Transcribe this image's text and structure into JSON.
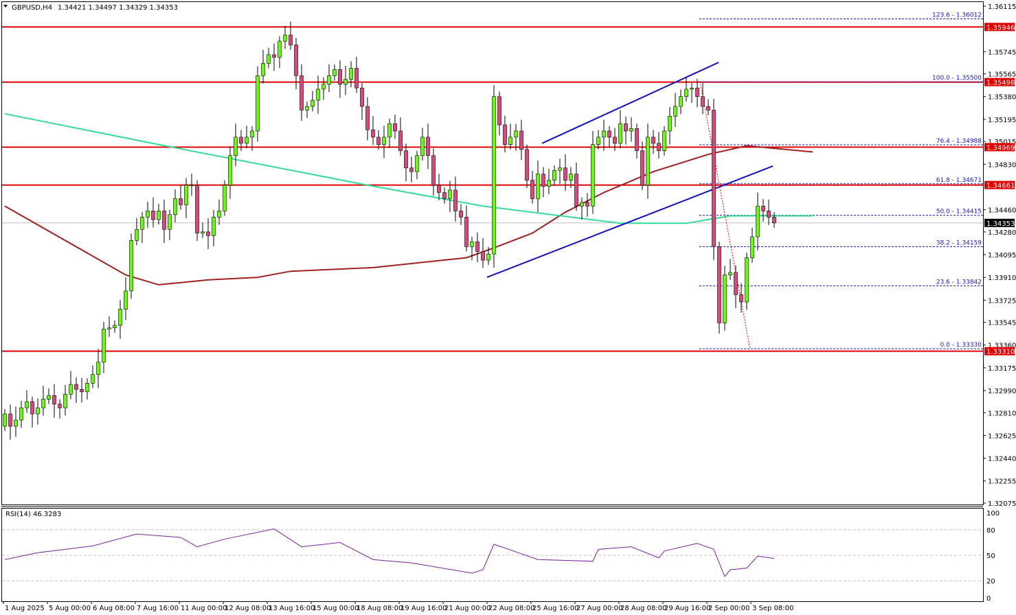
{
  "header": {
    "symbol": "GBPUSD,H4",
    "ohlc": "1.34421 1.34497 1.34329 1.34353",
    "menu_icon": "triangle-down-icon"
  },
  "chart_data": {
    "type": "candlestick",
    "colors": {
      "bull": "#66ff00",
      "bear": "#e0457b",
      "level": "#e00000",
      "fib": "#1a1acc",
      "channel": "#1010c0",
      "ma_fast": "#33dd99",
      "ma_slow": "#a02020",
      "rsi": "#8020a0"
    },
    "ylim": [
      1.32075,
      1.36115
    ],
    "price_ticks": [
      "1.36115",
      "1.35745",
      "1.35565",
      "1.35380",
      "1.35195",
      "1.35015",
      "1.34830",
      "1.34460",
      "1.34280",
      "1.34095",
      "1.33910",
      "1.33725",
      "1.33545",
      "1.33360",
      "1.33175",
      "1.32990",
      "1.32810",
      "1.32625",
      "1.32440",
      "1.32255",
      "1.32075"
    ],
    "date_labels": [
      "1 Aug 2025",
      "5 Aug 00:00",
      "6 Aug 08:00",
      "7 Aug 16:00",
      "11 Aug 00:00",
      "12 Aug 08:00",
      "13 Aug 16:00",
      "15 Aug 00:00",
      "18 Aug 08:00",
      "19 Aug 16:00",
      "21 Aug 00:00",
      "22 Aug 08:00",
      "25 Aug 16:00",
      "27 Aug 00:00",
      "28 Aug 08:00",
      "29 Aug 16:00",
      "2 Sep 00:00",
      "3 Sep 08:00"
    ],
    "bars_per_date_label": 8,
    "first_open": 1.327,
    "closes": [
      1.328,
      1.327,
      1.3275,
      1.3285,
      1.329,
      1.328,
      1.3285,
      1.3292,
      1.3295,
      1.3288,
      1.3285,
      1.3296,
      1.3304,
      1.33,
      1.3298,
      1.3305,
      1.3312,
      1.3322,
      1.3349,
      1.335,
      1.3352,
      1.3365,
      1.338,
      1.3421,
      1.343,
      1.344,
      1.3445,
      1.3438,
      1.3445,
      1.343,
      1.3442,
      1.3455,
      1.345,
      1.3466,
      1.3466,
      1.3427,
      1.3428,
      1.3425,
      1.344,
      1.3445,
      1.3466,
      1.349,
      1.3505,
      1.35,
      1.3505,
      1.351,
      1.3555,
      1.3565,
      1.3572,
      1.357,
      1.3583,
      1.3588,
      1.358,
      1.3555,
      1.3527,
      1.353,
      1.3535,
      1.3544,
      1.3548,
      1.3555,
      1.356,
      1.3548,
      1.3552,
      1.3561,
      1.3545,
      1.353,
      1.3511,
      1.3505,
      1.3499,
      1.3505,
      1.3516,
      1.351,
      1.3494,
      1.348,
      1.3477,
      1.349,
      1.3505,
      1.349,
      1.3466,
      1.346,
      1.3455,
      1.3462,
      1.3445,
      1.344,
      1.3416,
      1.342,
      1.3412,
      1.3405,
      1.341,
      1.3538,
      1.3515,
      1.3499,
      1.3505,
      1.351,
      1.3495,
      1.347,
      1.3455,
      1.3475,
      1.3465,
      1.347,
      1.3478,
      1.348,
      1.347,
      1.3475,
      1.3449,
      1.3452,
      1.3449,
      1.3499,
      1.3505,
      1.351,
      1.3505,
      1.35,
      1.3516,
      1.351,
      1.3512,
      1.3494,
      1.3466,
      1.3505,
      1.35,
      1.3494,
      1.351,
      1.3522,
      1.353,
      1.3538,
      1.3544,
      1.3545,
      1.3538,
      1.353,
      1.3527,
      1.3416,
      1.3354,
      1.3393,
      1.3395,
      1.3377,
      1.3371,
      1.3407,
      1.3424,
      1.3449,
      1.3445,
      1.344,
      1.34353
    ],
    "ma_fast": [
      [
        0,
        1.3524
      ],
      [
        28,
        1.3499
      ],
      [
        66,
        1.3466
      ],
      [
        87,
        1.3449
      ],
      [
        112,
        1.3435
      ],
      [
        124,
        1.3435
      ],
      [
        132,
        1.3441
      ],
      [
        147,
        1.3441
      ]
    ],
    "ma_slow": [
      [
        0,
        1.3449
      ],
      [
        22,
        1.3393
      ],
      [
        28,
        1.3385
      ],
      [
        37,
        1.3389
      ],
      [
        46,
        1.3391
      ],
      [
        52,
        1.3396
      ],
      [
        67,
        1.3399
      ],
      [
        84,
        1.3407
      ],
      [
        89,
        1.3415
      ],
      [
        96,
        1.3427
      ],
      [
        102,
        1.3444
      ],
      [
        109,
        1.346
      ],
      [
        118,
        1.3477
      ],
      [
        128,
        1.3491
      ],
      [
        135,
        1.3498
      ],
      [
        147,
        1.3493
      ]
    ],
    "channel_lines": [
      {
        "from": [
          87.75,
          1.33911
        ],
        "to": [
          139.75,
          1.34815
        ]
      },
      {
        "from": [
          97.75,
          1.35
        ],
        "to": [
          129.9,
          1.35658
        ]
      }
    ],
    "fib_retracement_line": {
      "from": [
        126.5,
        1.355
      ],
      "to": [
        135.6,
        1.3333
      ]
    },
    "levels": [
      "1.35946",
      "1.35498",
      "1.34969",
      "1.34661",
      "1.33310"
    ],
    "fib_levels": [
      {
        "label": "123.6 - 1.36012",
        "price": 1.36012
      },
      {
        "label": "100.0 - 1.35500",
        "price": 1.355
      },
      {
        "label": "76.4 - 1.34988",
        "price": 1.34988
      },
      {
        "label": "61.8 - 1.34671",
        "price": 1.34671
      },
      {
        "label": "50.0 - 1.34415",
        "price": 1.34415
      },
      {
        "label": "38.2 - 1.34159",
        "price": 1.34159
      },
      {
        "label": "23.6 - 1.33842",
        "price": 1.33842
      },
      {
        "label": "0.0 - 1.33330",
        "price": 1.3333
      }
    ],
    "current_price": "1.34353",
    "rsi": {
      "title": "RSI(14) 46.3283",
      "ylim": [
        0,
        100
      ],
      "ticks": [
        "100",
        "80",
        "50",
        "20",
        "0"
      ],
      "grid": [
        80,
        50,
        20
      ],
      "values": [
        [
          0,
          45
        ],
        [
          6,
          53
        ],
        [
          16,
          61
        ],
        [
          24,
          75
        ],
        [
          32,
          71
        ],
        [
          35,
          60
        ],
        [
          40,
          69
        ],
        [
          49,
          81
        ],
        [
          54,
          60
        ],
        [
          61,
          65
        ],
        [
          67,
          45
        ],
        [
          74,
          41
        ],
        [
          85,
          29
        ],
        [
          87,
          33
        ],
        [
          89,
          63
        ],
        [
          97,
          45
        ],
        [
          107,
          43
        ],
        [
          108,
          57
        ],
        [
          114,
          60
        ],
        [
          119,
          47
        ],
        [
          120,
          55
        ],
        [
          126,
          64
        ],
        [
          129,
          57
        ],
        [
          131,
          25
        ],
        [
          132,
          33
        ],
        [
          135,
          35
        ],
        [
          137,
          49
        ],
        [
          140,
          46.3
        ]
      ]
    }
  }
}
